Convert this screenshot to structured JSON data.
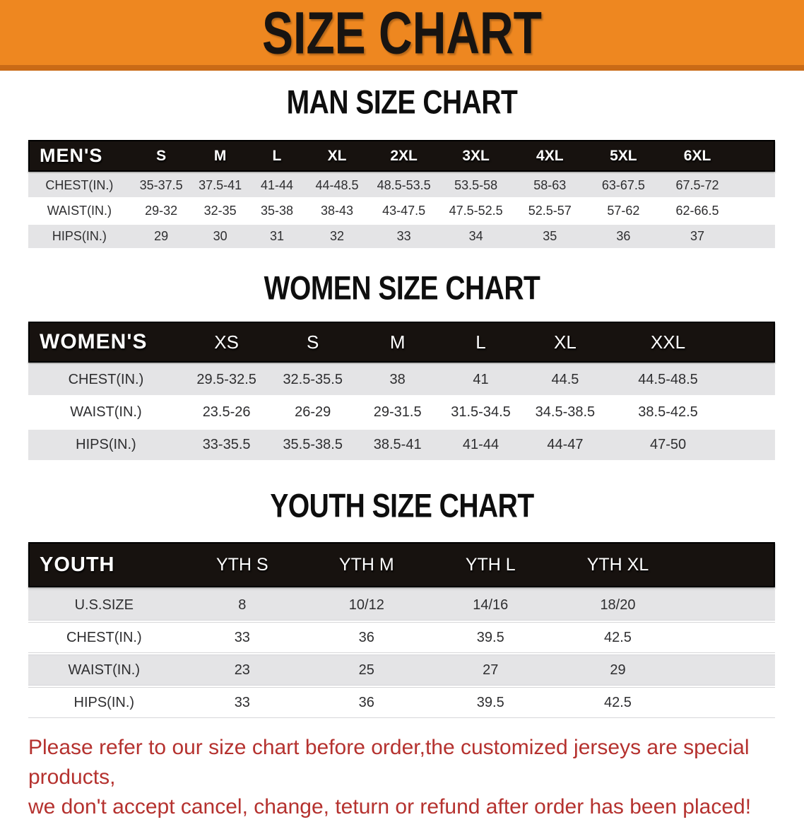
{
  "banner": {
    "title": "SIZE CHART",
    "background": "#ee8720",
    "underline": "#c96a16"
  },
  "sections": {
    "men": {
      "heading": "MAN SIZE CHART",
      "table": {
        "label": "MEN'S",
        "columns": [
          "S",
          "M",
          "L",
          "XL",
          "2XL",
          "3XL",
          "4XL",
          "5XL",
          "6XL"
        ],
        "rows": [
          {
            "label": "CHEST(IN.)",
            "values": [
              "35-37.5",
              "37.5-41",
              "41-44",
              "44-48.5",
              "48.5-53.5",
              "53.5-58",
              "58-63",
              "63-67.5",
              "67.5-72"
            ]
          },
          {
            "label": "WAIST(IN.)",
            "values": [
              "29-32",
              "32-35",
              "35-38",
              "38-43",
              "43-47.5",
              "47.5-52.5",
              "52.5-57",
              "57-62",
              "62-66.5"
            ]
          },
          {
            "label": "HIPS(IN.)",
            "values": [
              "29",
              "30",
              "31",
              "32",
              "33",
              "34",
              "35",
              "36",
              "37"
            ]
          }
        ]
      }
    },
    "women": {
      "heading": "WOMEN SIZE CHART",
      "table": {
        "label": "WOMEN'S",
        "columns": [
          "XS",
          "S",
          "M",
          "L",
          "XL",
          "XXL"
        ],
        "rows": [
          {
            "label": "CHEST(IN.)",
            "values": [
              "29.5-32.5",
              "32.5-35.5",
              "38",
              "41",
              "44.5",
              "44.5-48.5"
            ]
          },
          {
            "label": "WAIST(IN.)",
            "values": [
              "23.5-26",
              "26-29",
              "29-31.5",
              "31.5-34.5",
              "34.5-38.5",
              "38.5-42.5"
            ]
          },
          {
            "label": "HIPS(IN.)",
            "values": [
              "33-35.5",
              "35.5-38.5",
              "38.5-41",
              "41-44",
              "44-47",
              "47-50"
            ]
          }
        ]
      }
    },
    "youth": {
      "heading": "YOUTH SIZE CHART",
      "table": {
        "label": "YOUTH",
        "columns": [
          "YTH S",
          "YTH M",
          "YTH L",
          "YTH XL"
        ],
        "rows": [
          {
            "label": "U.S.SIZE",
            "values": [
              "8",
              "10/12",
              "14/16",
              "18/20"
            ]
          },
          {
            "label": "CHEST(IN.)",
            "values": [
              "33",
              "36",
              "39.5",
              "42.5"
            ]
          },
          {
            "label": "WAIST(IN.)",
            "values": [
              "23",
              "25",
              "27",
              "29"
            ]
          },
          {
            "label": "HIPS(IN.)",
            "values": [
              "33",
              "36",
              "39.5",
              "42.5"
            ]
          }
        ]
      }
    }
  },
  "footer": {
    "line1": "Please refer to our size chart before order,the customized jerseys are special products,",
    "line2": "we don't accept cancel, change, teturn or refund after order has been placed!",
    "color": "#b5322f"
  },
  "colors": {
    "header_bar": "#17120f",
    "row_stripe": "#e4e4e6",
    "cell_text": "#2e2e30"
  }
}
